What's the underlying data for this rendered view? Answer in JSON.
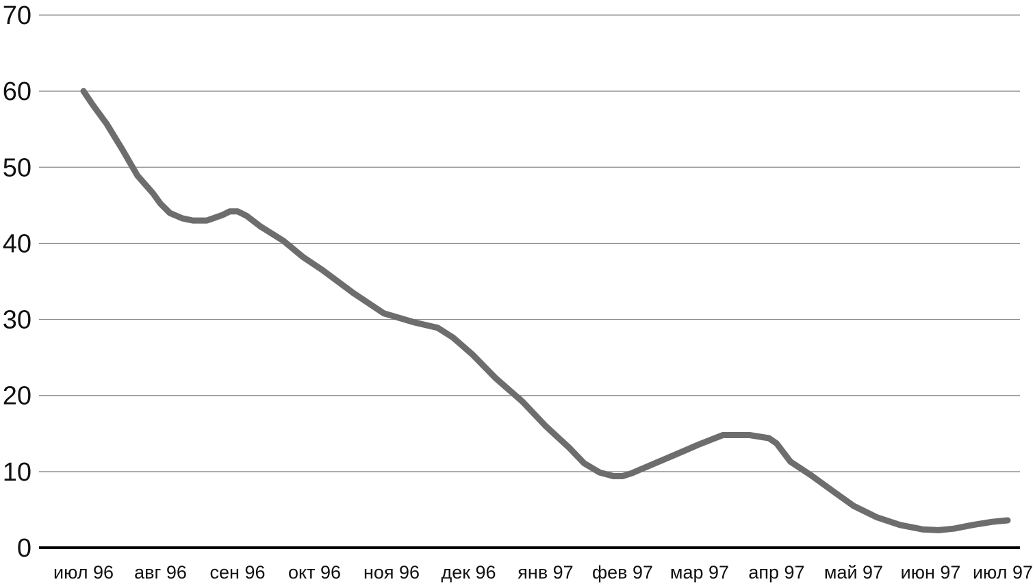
{
  "chart_data": {
    "type": "line",
    "title": "",
    "xlabel": "",
    "ylabel": "",
    "ylim": [
      0,
      70
    ],
    "yticks": [
      0,
      10,
      20,
      30,
      40,
      50,
      60,
      70
    ],
    "grid": true,
    "legend": "none",
    "categories": [
      "июл 96",
      "авг 96",
      "сен 96",
      "окт 96",
      "ноя 96",
      "дек 96",
      "янв 97",
      "фев 97",
      "мар 97",
      "апр 97",
      "май 97",
      "июн 97",
      "июл 97"
    ],
    "series": [
      {
        "color": "#6d6d6d",
        "x": [
          0,
          0.12,
          0.3,
          0.5,
          0.7,
          0.9,
          1.0,
          1.12,
          1.28,
          1.42,
          1.6,
          1.8,
          1.9,
          2.0,
          2.12,
          2.3,
          2.6,
          2.85,
          3.1,
          3.5,
          3.9,
          4.3,
          4.6,
          4.8,
          5.05,
          5.35,
          5.7,
          6.0,
          6.3,
          6.5,
          6.7,
          6.88,
          7.0,
          7.12,
          7.4,
          7.7,
          8.0,
          8.3,
          8.65,
          8.9,
          9.0,
          9.18,
          9.45,
          9.75,
          10.0,
          10.3,
          10.6,
          10.9,
          11.1,
          11.3,
          11.55,
          11.8,
          12.0
        ],
        "values": [
          60,
          58.2,
          55.7,
          52.4,
          48.9,
          46.6,
          45.2,
          44.0,
          43.3,
          43.0,
          43.0,
          43.7,
          44.2,
          44.2,
          43.6,
          42.2,
          40.3,
          38.2,
          36.5,
          33.5,
          30.8,
          29.6,
          28.9,
          27.6,
          25.4,
          22.3,
          19.2,
          16.0,
          13.2,
          11.1,
          9.9,
          9.4,
          9.4,
          9.8,
          11.0,
          12.3,
          13.6,
          14.8,
          14.8,
          14.4,
          13.7,
          11.3,
          9.5,
          7.3,
          5.5,
          4.0,
          3.0,
          2.4,
          2.3,
          2.5,
          3.0,
          3.4,
          3.6
        ]
      }
    ]
  }
}
